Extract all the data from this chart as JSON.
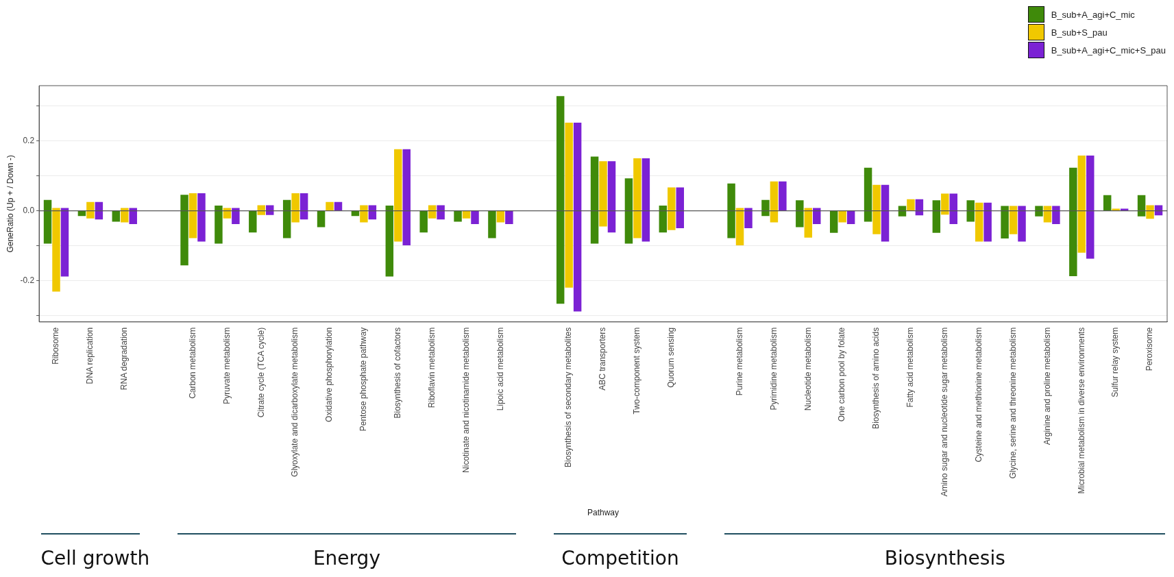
{
  "chart_data": {
    "type": "bar",
    "xlabel": "Pathway",
    "ylabel": "GeneRatio (Up + / Down -)",
    "categories": [
      "Ribosome",
      "DNA replication",
      "RNA degradation",
      null,
      "Carbon metabolism",
      "Pyruvate metabolism",
      "Citrate cycle (TCA cycle)",
      "Glyoxylate and dicarboxylate metabolism",
      "Oxidative phosphorylation",
      "Pentose phosphate pathway",
      "Biosynthesis of cofactors",
      "Riboflavin metabolism",
      "Nicotinate and nicotinamide metabolism",
      "Lipoic acid metabolism",
      null,
      "Biosynthesis of secondary metabolites",
      "ABC transporters",
      "Two-component system",
      "Quorum sensing",
      null,
      "Purine metabolism",
      "Pyrimidine metabolism",
      "Nucleotide metabolism",
      "One carbon pool by folate",
      "Biosynthesis of amino acids",
      "Fatty acid metabolism",
      "Amino sugar and nucleotide sugar metabolism",
      "Cysteine and methionine metabolism",
      "Glycine, serine and threonine metabolism",
      "Arginine and proline metabolism",
      "Microbial metabolism in diverse environments",
      "Sulfur relay system",
      "Peroxisome"
    ],
    "series": [
      {
        "name": "B_sub+A_agi+C_mic",
        "color": "#3f8a0a",
        "base": [
          -0.094,
          -0.015,
          -0.031,
          null,
          -0.156,
          -0.094,
          -0.062,
          -0.078,
          -0.047,
          -0.015,
          -0.188,
          -0.062,
          -0.031,
          -0.078,
          null,
          -0.266,
          -0.094,
          -0.094,
          -0.062,
          null,
          -0.078,
          -0.015,
          -0.047,
          -0.063,
          -0.031,
          -0.016,
          -0.063,
          -0.031,
          -0.079,
          -0.016,
          -0.187,
          0,
          -0.016
        ],
        "values": [
          0.125,
          0.015,
          0.031,
          null,
          0.202,
          0.109,
          0.062,
          0.109,
          0.047,
          0.015,
          0.203,
          0.062,
          0.031,
          0.078,
          null,
          0.594,
          0.249,
          0.187,
          0.077,
          null,
          0.156,
          0.046,
          0.077,
          0.063,
          0.154,
          0.03,
          0.093,
          0.061,
          0.093,
          0.03,
          0.31,
          0.045,
          0.061
        ]
      },
      {
        "name": "B_sub+S_pau",
        "color": "#f0c800",
        "base": [
          -0.231,
          -0.022,
          -0.033,
          null,
          -0.078,
          -0.022,
          -0.012,
          -0.033,
          0,
          -0.033,
          -0.088,
          -0.022,
          -0.022,
          -0.033,
          null,
          -0.22,
          -0.045,
          -0.078,
          -0.055,
          null,
          -0.099,
          -0.033,
          -0.077,
          -0.033,
          -0.067,
          0,
          -0.011,
          -0.088,
          -0.067,
          -0.033,
          -0.12,
          0,
          -0.023
        ],
        "values": [
          0.239,
          0.047,
          0.041,
          null,
          0.128,
          0.03,
          0.028,
          0.083,
          0.025,
          0.049,
          0.264,
          0.038,
          0.022,
          0.033,
          null,
          0.472,
          0.187,
          0.228,
          0.122,
          null,
          0.107,
          0.117,
          0.085,
          0.033,
          0.141,
          0.033,
          0.06,
          0.111,
          0.081,
          0.047,
          0.278,
          0.006,
          0.039
        ]
      },
      {
        "name": "B_sub+A_agi+C_mic+S_pau",
        "color": "#7b22d4",
        "base": [
          -0.188,
          -0.025,
          -0.038,
          null,
          -0.088,
          -0.038,
          -0.012,
          -0.025,
          0,
          -0.025,
          -0.099,
          -0.025,
          -0.038,
          -0.038,
          null,
          -0.288,
          -0.062,
          -0.088,
          -0.05,
          null,
          -0.05,
          0,
          -0.038,
          -0.038,
          -0.088,
          -0.013,
          -0.038,
          -0.088,
          -0.088,
          -0.038,
          -0.137,
          0,
          -0.013
        ],
        "values": [
          0.196,
          0.05,
          0.046,
          null,
          0.138,
          0.046,
          0.028,
          0.075,
          0.025,
          0.041,
          0.275,
          0.041,
          0.038,
          0.038,
          null,
          0.54,
          0.204,
          0.238,
          0.117,
          null,
          0.058,
          0.084,
          0.046,
          0.038,
          0.162,
          0.046,
          0.087,
          0.111,
          0.102,
          0.052,
          0.295,
          0.006,
          0.029
        ]
      }
    ],
    "ylim": [
      -0.318,
      0.358
    ],
    "yticks": [
      {
        "value": -0.3,
        "label": null
      },
      {
        "value": -0.2,
        "label": "-0.2"
      },
      {
        "value": -0.1,
        "label": null
      },
      {
        "value": 0,
        "label": "0.0"
      },
      {
        "value": 0.1,
        "label": null
      },
      {
        "value": 0.2,
        "label": "0.2"
      },
      {
        "value": 0.3,
        "label": null
      }
    ],
    "ref_lines": [
      {
        "axis": "y",
        "value": 0,
        "color": "#555555"
      }
    ],
    "grid": "y",
    "legend": "top right",
    "annotations": [
      "Cell growth",
      "Energy",
      "Competition",
      "Biosynthesis"
    ]
  }
}
